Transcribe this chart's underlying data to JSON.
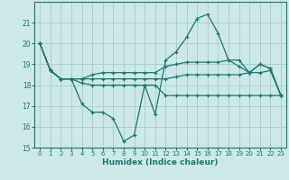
{
  "xlabel": "Humidex (Indice chaleur)",
  "background_color": "#cce8e8",
  "grid_color": "#aacccc",
  "line_color": "#1a7a6e",
  "xlim": [
    -0.5,
    23.5
  ],
  "ylim": [
    15,
    22
  ],
  "yticks": [
    15,
    16,
    17,
    18,
    19,
    20,
    21
  ],
  "xticks": [
    0,
    1,
    2,
    3,
    4,
    5,
    6,
    7,
    8,
    9,
    10,
    11,
    12,
    13,
    14,
    15,
    16,
    17,
    18,
    19,
    20,
    21,
    22,
    23
  ],
  "lines": [
    [
      20.0,
      18.7,
      18.3,
      18.3,
      17.1,
      16.7,
      16.7,
      16.4,
      15.3,
      15.6,
      18.0,
      16.6,
      19.2,
      19.6,
      20.3,
      21.2,
      21.4,
      20.5,
      19.2,
      19.2,
      18.6,
      19.0,
      18.8,
      17.5
    ],
    [
      20.0,
      18.7,
      18.3,
      18.3,
      18.3,
      18.5,
      18.6,
      18.6,
      18.6,
      18.6,
      18.6,
      18.6,
      18.9,
      19.0,
      19.1,
      19.1,
      19.1,
      19.1,
      19.2,
      18.9,
      18.6,
      19.0,
      18.8,
      17.5
    ],
    [
      20.0,
      18.7,
      18.3,
      18.3,
      18.3,
      18.3,
      18.3,
      18.3,
      18.3,
      18.3,
      18.3,
      18.3,
      18.3,
      18.4,
      18.5,
      18.5,
      18.5,
      18.5,
      18.5,
      18.5,
      18.6,
      18.6,
      18.7,
      17.5
    ],
    [
      20.0,
      18.7,
      18.3,
      18.3,
      18.1,
      18.0,
      18.0,
      18.0,
      18.0,
      18.0,
      18.0,
      18.0,
      17.5,
      17.5,
      17.5,
      17.5,
      17.5,
      17.5,
      17.5,
      17.5,
      17.5,
      17.5,
      17.5,
      17.5
    ]
  ]
}
